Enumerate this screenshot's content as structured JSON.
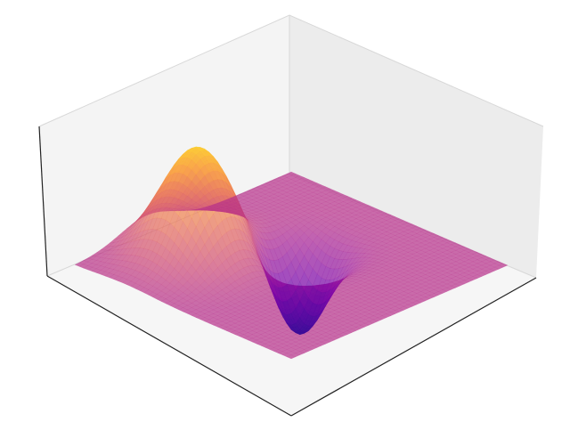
{
  "chart_data": {
    "type": "surface3d",
    "title": "",
    "xlabel": "",
    "ylabel": "",
    "zlabel": "",
    "xlim": [
      -3,
      3
    ],
    "ylim": [
      -3,
      3
    ],
    "zlim": [
      -1.2,
      1.6
    ],
    "grid": false,
    "colormap": "plasma",
    "surface_alpha": 0.7,
    "pane_color": "#f2f2f2",
    "axis_line_color": "#222222",
    "surface": {
      "features": [
        {
          "name": "peak",
          "x": 1.6,
          "y": -1.0,
          "amplitude": 1.35,
          "width": 0.75
        },
        {
          "name": "trough",
          "x": 0.3,
          "y": 0.5,
          "amplitude": -1.05,
          "width": 0.55
        }
      ]
    }
  }
}
